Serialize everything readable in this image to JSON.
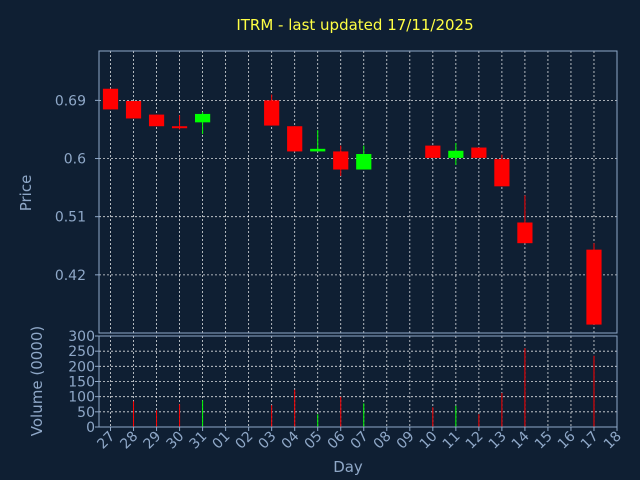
{
  "chart_data": {
    "type": "candlestick",
    "title": "ITRM - last updated 17/11/2025",
    "xlabel": "Day",
    "price_panel": {
      "ylabel": "Price",
      "yticks": [
        "0.69",
        "0.6",
        "0.51",
        "0.42"
      ],
      "ytick_values": [
        0.69,
        0.6,
        0.51,
        0.42
      ],
      "ylim": [
        0.33,
        0.7664
      ],
      "grid": true
    },
    "volume_panel": {
      "ylabel": "Volume (0000)",
      "yticks": [
        "300",
        "250",
        "200",
        "150",
        "100",
        "50",
        "0"
      ],
      "ytick_values": [
        300,
        250,
        200,
        150,
        100,
        50,
        0
      ],
      "ylim": [
        0,
        300
      ],
      "grid": true
    },
    "x_ticks": [
      "27",
      "28",
      "29",
      "30",
      "31",
      "01",
      "02",
      "03",
      "04",
      "05",
      "06",
      "07",
      "08",
      "09",
      "10",
      "11",
      "12",
      "13",
      "14",
      "15",
      "16",
      "17",
      "18"
    ],
    "candles": [
      {
        "day": "27",
        "open": 0.708,
        "high": 0.708,
        "low": 0.676,
        "close": 0.676,
        "volume": 0
      },
      {
        "day": "28",
        "open": 0.689,
        "high": 0.689,
        "low": 0.662,
        "close": 0.662,
        "volume": 85
      },
      {
        "day": "29",
        "open": 0.668,
        "high": 0.668,
        "low": 0.65,
        "close": 0.65,
        "volume": 55
      },
      {
        "day": "30",
        "open": 0.65,
        "high": 0.667,
        "low": 0.645,
        "close": 0.647,
        "volume": 75
      },
      {
        "day": "31",
        "open": 0.656,
        "high": 0.672,
        "low": 0.638,
        "close": 0.669,
        "volume": 88
      },
      {
        "day": "03",
        "open": 0.69,
        "high": 0.699,
        "low": 0.651,
        "close": 0.651,
        "volume": 72
      },
      {
        "day": "04",
        "open": 0.65,
        "high": 0.65,
        "low": 0.611,
        "close": 0.611,
        "volume": 123
      },
      {
        "day": "05",
        "open": 0.611,
        "high": 0.644,
        "low": 0.611,
        "close": 0.615,
        "volume": 42
      },
      {
        "day": "06",
        "open": 0.611,
        "high": 0.62,
        "low": 0.573,
        "close": 0.583,
        "volume": 100
      },
      {
        "day": "07",
        "open": 0.583,
        "high": 0.62,
        "low": 0.583,
        "close": 0.607,
        "volume": 78
      },
      {
        "day": "10",
        "open": 0.62,
        "high": 0.62,
        "low": 0.601,
        "close": 0.601,
        "volume": 65
      },
      {
        "day": "11",
        "open": 0.601,
        "high": 0.624,
        "low": 0.59,
        "close": 0.612,
        "volume": 70
      },
      {
        "day": "12",
        "open": 0.617,
        "high": 0.617,
        "low": 0.601,
        "close": 0.601,
        "volume": 42
      },
      {
        "day": "13",
        "open": 0.599,
        "high": 0.606,
        "low": 0.557,
        "close": 0.557,
        "volume": 112
      },
      {
        "day": "14",
        "open": 0.501,
        "high": 0.543,
        "low": 0.469,
        "close": 0.469,
        "volume": 260
      },
      {
        "day": "17",
        "open": 0.459,
        "high": 0.469,
        "low": 0.343,
        "close": 0.343,
        "volume": 235
      }
    ],
    "colors": {
      "up": "#00ff00",
      "down": "#ff0000",
      "background": "#0f1f33",
      "title": "#ffff44",
      "axis": "#8fa8c8",
      "grid": "#ffffff"
    }
  }
}
